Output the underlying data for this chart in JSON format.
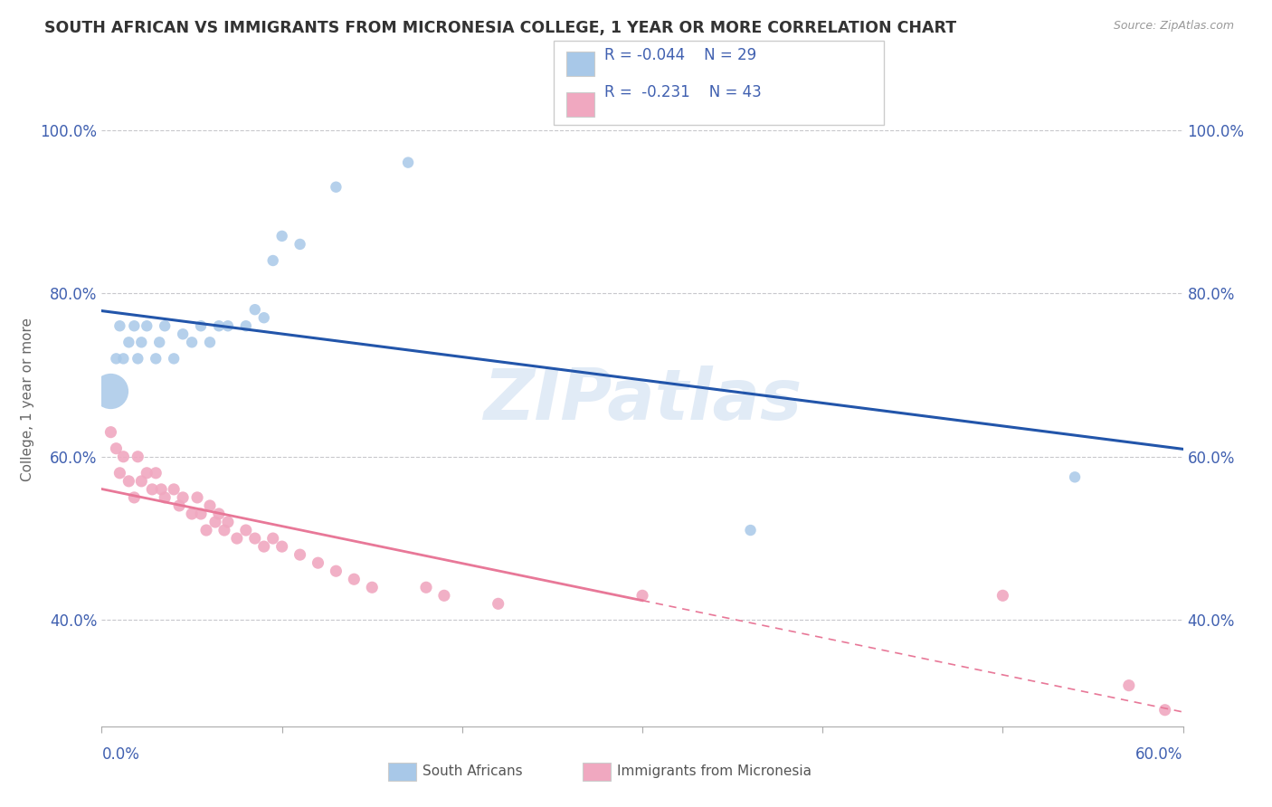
{
  "title": "SOUTH AFRICAN VS IMMIGRANTS FROM MICRONESIA COLLEGE, 1 YEAR OR MORE CORRELATION CHART",
  "source": "Source: ZipAtlas.com",
  "ylabel": "College, 1 year or more",
  "xlim": [
    0.0,
    0.6
  ],
  "ylim": [
    0.27,
    1.07
  ],
  "y_ticks": [
    0.4,
    0.6,
    0.8,
    1.0
  ],
  "y_tick_labels": [
    "40.0%",
    "60.0%",
    "80.0%",
    "100.0%"
  ],
  "x_ticks": [
    0.0,
    0.1,
    0.2,
    0.3,
    0.4,
    0.5,
    0.6
  ],
  "background_color": "#ffffff",
  "watermark": "ZIPatlas",
  "legend_R1": "-0.044",
  "legend_N1": "29",
  "legend_R2": "-0.231",
  "legend_N2": "43",
  "blue_scatter_color": "#a8c8e8",
  "pink_scatter_color": "#f0a8c0",
  "blue_line_color": "#2255aa",
  "pink_line_color": "#e87898",
  "text_color": "#4060b0",
  "grid_color": "#c8c8cc",
  "south_african_x": [
    0.005,
    0.008,
    0.01,
    0.012,
    0.015,
    0.018,
    0.02,
    0.022,
    0.025,
    0.03,
    0.032,
    0.035,
    0.04,
    0.045,
    0.05,
    0.055,
    0.06,
    0.065,
    0.07,
    0.08,
    0.085,
    0.09,
    0.095,
    0.1,
    0.11,
    0.13,
    0.17,
    0.36,
    0.54
  ],
  "south_african_y": [
    0.68,
    0.72,
    0.76,
    0.72,
    0.74,
    0.76,
    0.72,
    0.74,
    0.76,
    0.72,
    0.74,
    0.76,
    0.72,
    0.75,
    0.74,
    0.76,
    0.74,
    0.76,
    0.76,
    0.76,
    0.78,
    0.77,
    0.84,
    0.87,
    0.86,
    0.93,
    0.96,
    0.51,
    0.575
  ],
  "south_african_sizes": [
    800,
    80,
    80,
    80,
    80,
    80,
    80,
    80,
    80,
    80,
    80,
    80,
    80,
    80,
    80,
    80,
    80,
    80,
    80,
    80,
    80,
    80,
    80,
    80,
    80,
    80,
    80,
    80,
    80
  ],
  "micronesia_x": [
    0.005,
    0.008,
    0.01,
    0.012,
    0.015,
    0.018,
    0.02,
    0.022,
    0.025,
    0.028,
    0.03,
    0.033,
    0.035,
    0.04,
    0.043,
    0.045,
    0.05,
    0.053,
    0.055,
    0.058,
    0.06,
    0.063,
    0.065,
    0.068,
    0.07,
    0.075,
    0.08,
    0.085,
    0.09,
    0.095,
    0.1,
    0.11,
    0.12,
    0.13,
    0.14,
    0.15,
    0.18,
    0.19,
    0.22,
    0.3,
    0.5,
    0.57,
    0.59
  ],
  "micronesia_y": [
    0.63,
    0.61,
    0.58,
    0.6,
    0.57,
    0.55,
    0.6,
    0.57,
    0.58,
    0.56,
    0.58,
    0.56,
    0.55,
    0.56,
    0.54,
    0.55,
    0.53,
    0.55,
    0.53,
    0.51,
    0.54,
    0.52,
    0.53,
    0.51,
    0.52,
    0.5,
    0.51,
    0.5,
    0.49,
    0.5,
    0.49,
    0.48,
    0.47,
    0.46,
    0.45,
    0.44,
    0.44,
    0.43,
    0.42,
    0.43,
    0.43,
    0.32,
    0.29
  ],
  "micronesia_sizes": [
    80,
    80,
    80,
    80,
    80,
    80,
    80,
    80,
    80,
    80,
    80,
    80,
    80,
    80,
    80,
    80,
    80,
    80,
    80,
    80,
    80,
    80,
    80,
    80,
    80,
    80,
    80,
    80,
    80,
    80,
    80,
    80,
    80,
    80,
    80,
    80,
    80,
    80,
    80,
    80,
    80,
    80,
    80
  ]
}
